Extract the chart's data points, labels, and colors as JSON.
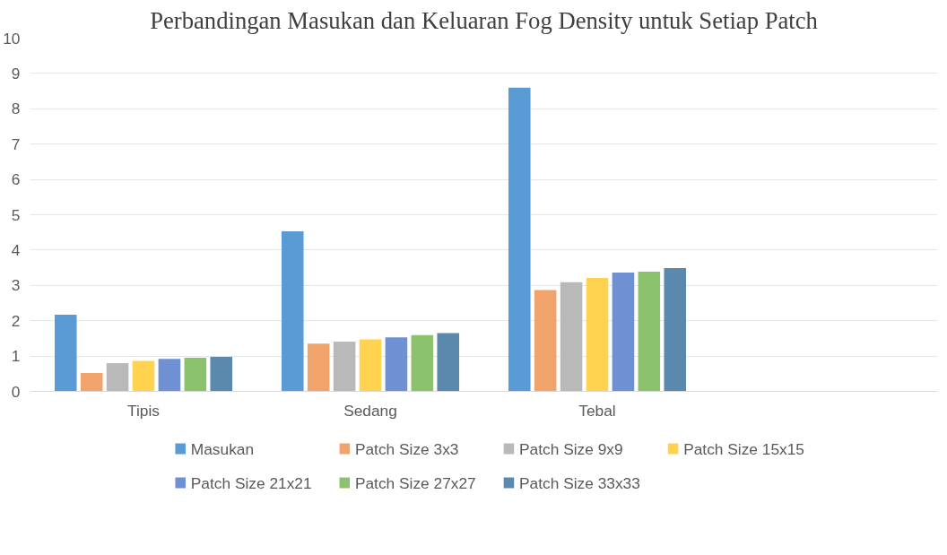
{
  "chart_data": {
    "type": "bar",
    "title": "Perbandingan Masukan dan Keluaran Fog Density untuk Setiap Patch",
    "categories": [
      "Tipis",
      "Sedang",
      "Tebal",
      null
    ],
    "series": [
      {
        "name": "Masukan",
        "color": "#5b9bd5",
        "values": [
          2.17,
          4.53,
          8.6,
          null
        ]
      },
      {
        "name": "Patch Size 3x3",
        "color": "#f0a46c",
        "values": [
          0.52,
          1.35,
          2.87,
          null
        ]
      },
      {
        "name": "Patch Size 9x9",
        "color": "#b9b9b9",
        "values": [
          0.8,
          1.41,
          3.09,
          null
        ]
      },
      {
        "name": "Patch Size 15x15",
        "color": "#ffd24f",
        "values": [
          0.86,
          1.47,
          3.21,
          null
        ]
      },
      {
        "name": "Patch Size 21x21",
        "color": "#6f91d3",
        "values": [
          0.92,
          1.53,
          3.36,
          null
        ]
      },
      {
        "name": "Patch Size 27x27",
        "color": "#8cc26e",
        "values": [
          0.95,
          1.59,
          3.39,
          null
        ]
      },
      {
        "name": "Patch Size 33x33",
        "color": "#5b88ad",
        "values": [
          0.98,
          1.65,
          3.49,
          null
        ]
      }
    ],
    "ylim": [
      0,
      10
    ],
    "yticks": [
      0,
      1,
      2,
      3,
      4,
      5,
      6,
      7,
      8,
      9,
      10
    ],
    "grid": "y",
    "legend": "bottom"
  }
}
